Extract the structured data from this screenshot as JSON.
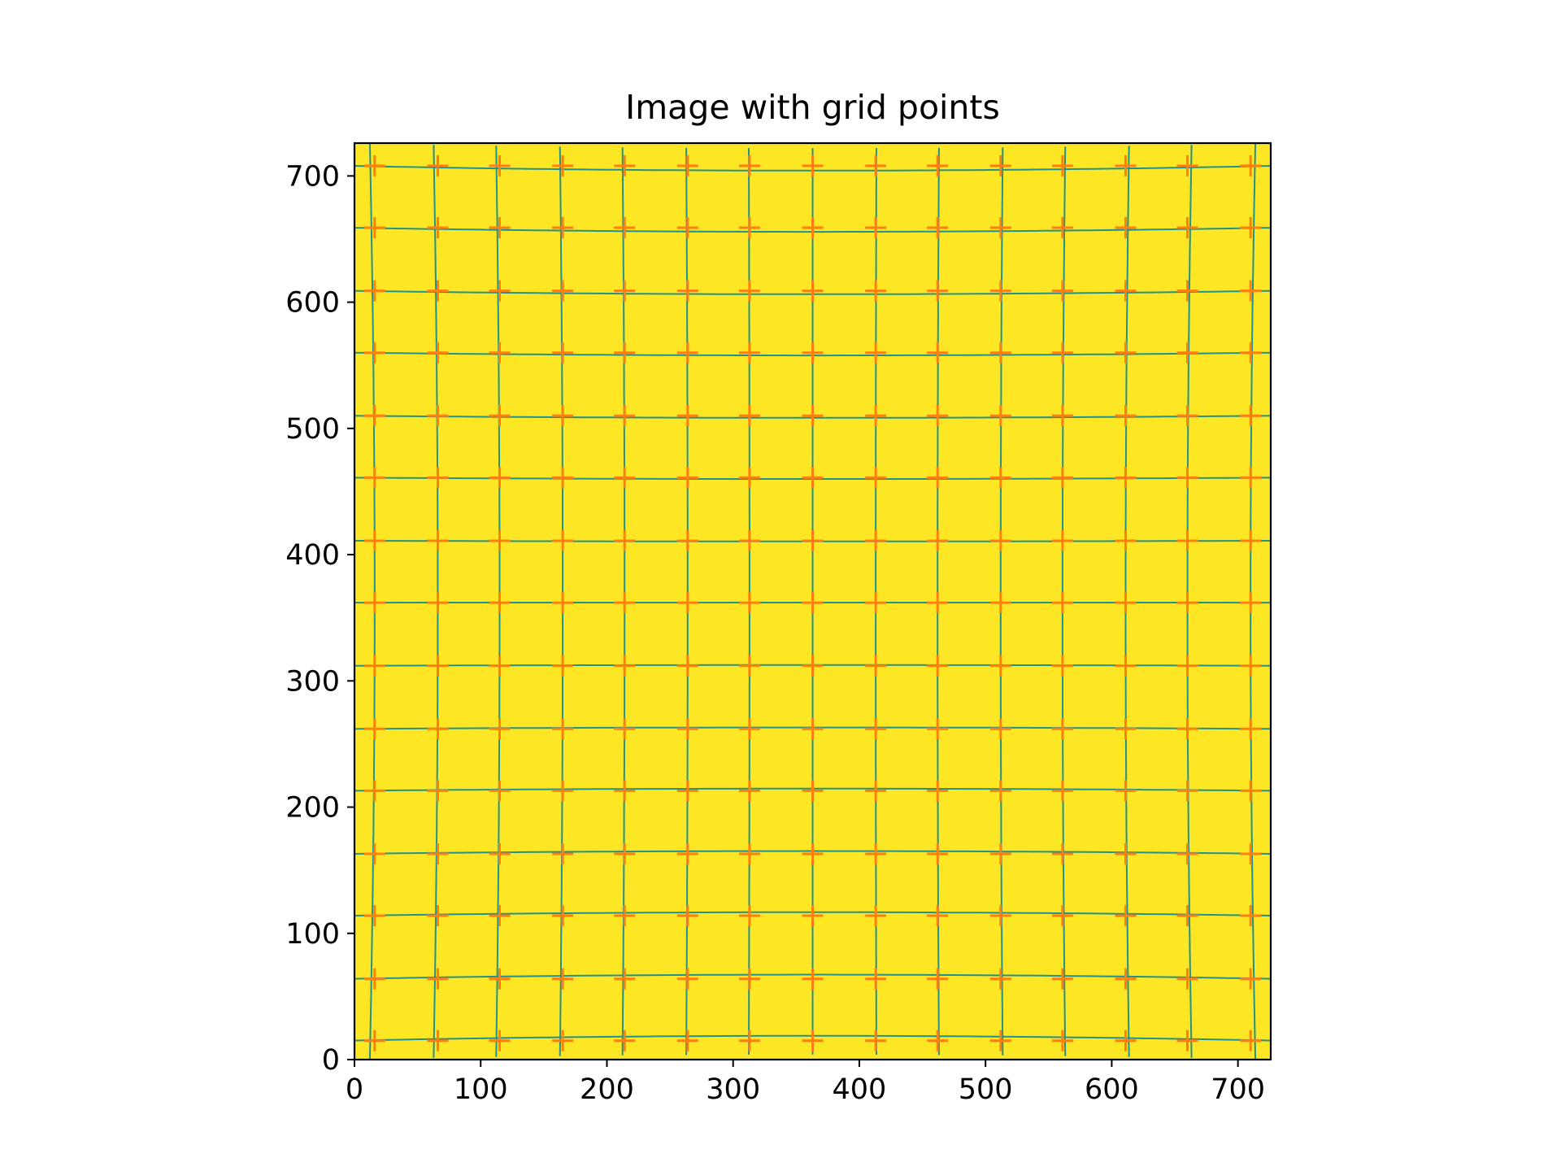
{
  "chart_data": {
    "type": "image",
    "title": "Image with grid points",
    "xlabel": "",
    "ylabel": "",
    "xlim": [
      0,
      726
    ],
    "ylim": [
      0,
      726
    ],
    "y_axis_origin": "lower",
    "x_ticks": [
      0,
      100,
      200,
      300,
      400,
      500,
      600,
      700
    ],
    "y_ticks": [
      0,
      100,
      200,
      300,
      400,
      500,
      600,
      700
    ],
    "x_tick_labels": [
      "0",
      "100",
      "200",
      "300",
      "400",
      "500",
      "600",
      "700"
    ],
    "y_tick_labels": [
      "0",
      "100",
      "200",
      "300",
      "400",
      "500",
      "600",
      "700"
    ],
    "grid": false,
    "legend": "none",
    "image_fill_color": "#fde725",
    "grid_line_color": "#21918c",
    "marker_color": "#ff7f0e",
    "marker_style": "plus",
    "grid_points": {
      "columns_x": [
        16,
        66,
        115,
        165,
        214,
        264,
        313,
        363,
        413,
        462,
        512,
        561,
        611,
        660,
        710
      ],
      "rows_y": [
        15,
        64,
        114,
        163,
        213,
        262,
        312,
        362,
        411,
        461,
        510,
        560,
        609,
        659,
        708
      ]
    },
    "distortion": "slight barrel-shaped warp: rows near the top and bottom bow toward the centre, columns near the left and right edges bow outward"
  }
}
